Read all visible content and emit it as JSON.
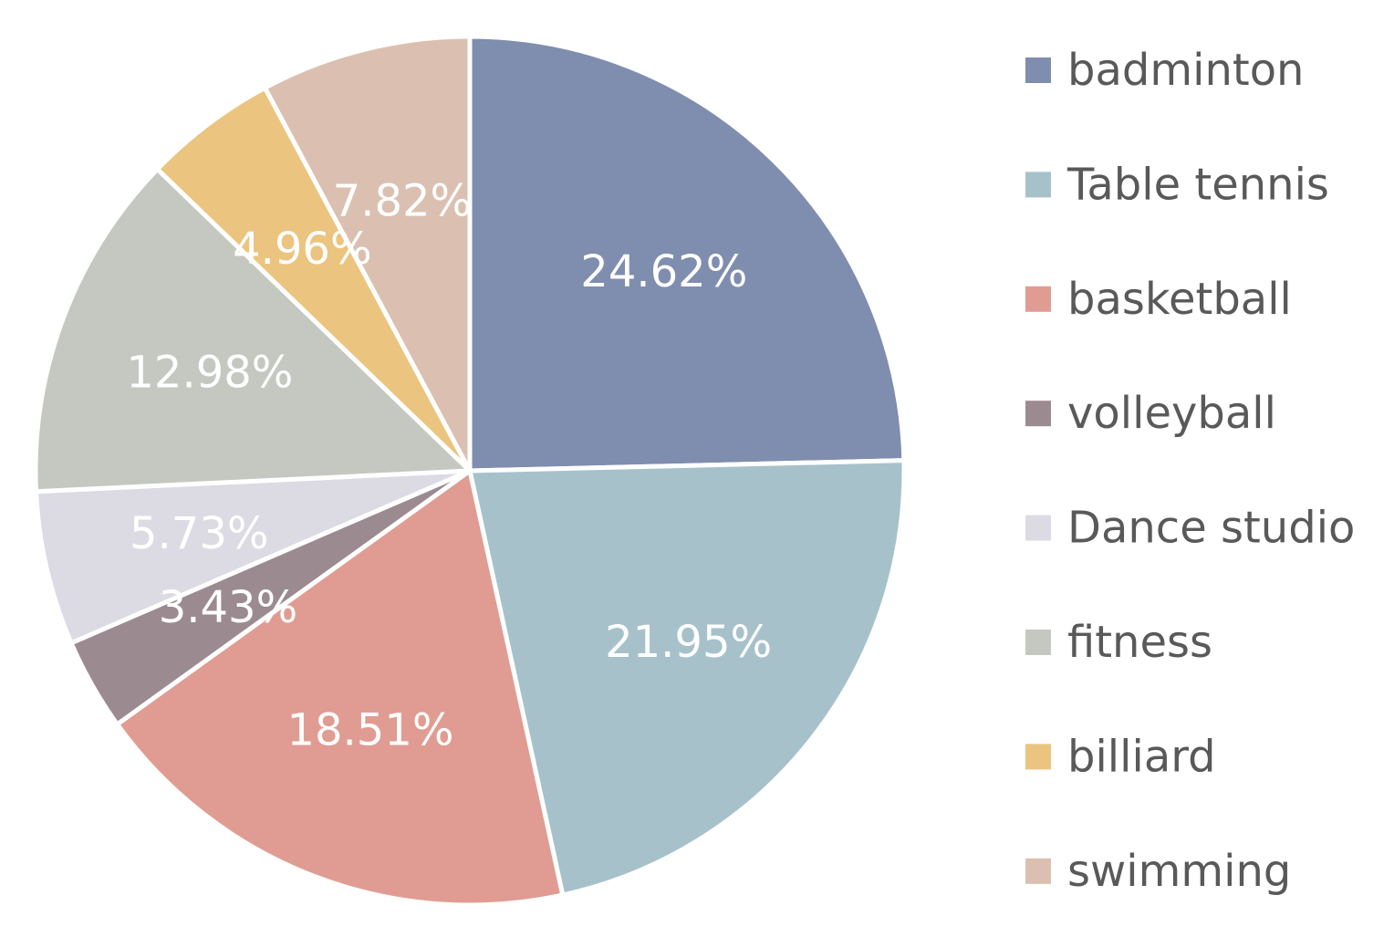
{
  "chart_data": {
    "type": "pie",
    "title": "",
    "legend_position": "right",
    "start_angle": "12 o'clock",
    "direction": "clockwise",
    "slices": [
      {
        "label": "badminton",
        "value": 24.62,
        "display": "24.62%",
        "color": "#7f8dae"
      },
      {
        "label": "Table tennis",
        "value": 21.95,
        "display": "21.95%",
        "color": "#a7c1cb"
      },
      {
        "label": "basketball",
        "value": 18.51,
        "display": "18.51%",
        "color": "#e09c92"
      },
      {
        "label": "volleyball",
        "value": 3.43,
        "display": "3.43%",
        "color": "#9b8b91"
      },
      {
        "label": "Dance studio",
        "value": 5.73,
        "display": "5.73%",
        "color": "#dcdbe4"
      },
      {
        "label": "fitness",
        "value": 12.98,
        "display": "12.98%",
        "color": "#c4c8c0"
      },
      {
        "label": "billiard",
        "value": 4.96,
        "display": "4.96%",
        "color": "#ebc47f"
      },
      {
        "label": "swimming",
        "value": 7.82,
        "display": "7.82%",
        "color": "#dbc0b1"
      }
    ],
    "label_color": "#ffffff",
    "legend_text_color": "#595959"
  }
}
